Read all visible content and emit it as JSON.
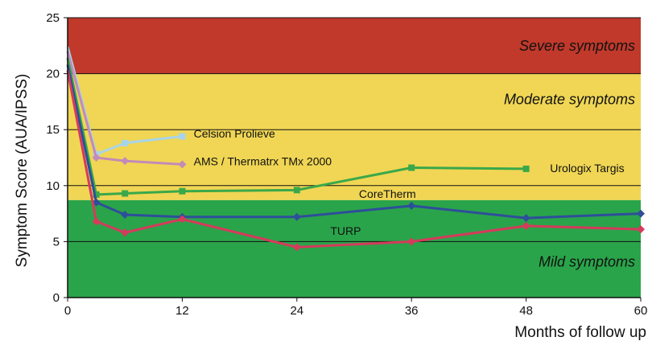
{
  "chart_data": {
    "type": "line",
    "ylabel": "Symptom Score (AUA/IPSS)",
    "xlabel": "Months of follow up",
    "xlim": [
      0,
      60
    ],
    "ylim": [
      0,
      25
    ],
    "xticks": [
      "0",
      "12",
      "24",
      "36",
      "48",
      "60"
    ],
    "yticks": [
      "0",
      "5",
      "10",
      "15",
      "20",
      "25"
    ],
    "grid": "horizontal",
    "zones": [
      {
        "label": "Severe symptoms",
        "from": 20,
        "to": 25,
        "color": "#c0392b"
      },
      {
        "label": "Moderate symptoms",
        "from": 8.7,
        "to": 20,
        "color": "#f0d654"
      },
      {
        "label": "Mild symptoms",
        "from": 0,
        "to": 8.7,
        "color": "#2aa44a"
      }
    ],
    "series": [
      {
        "name": "Celsion Prolieve",
        "color": "#a8d4ea",
        "marker": "square",
        "x": [
          0,
          3,
          6,
          12
        ],
        "y": [
          22.4,
          12.8,
          13.8,
          14.4
        ]
      },
      {
        "name": "AMS / Thermatrx TMx 2000",
        "color": "#c48ab8",
        "marker": "diamond",
        "x": [
          0,
          3,
          6,
          12
        ],
        "y": [
          22.0,
          12.5,
          12.2,
          11.9
        ]
      },
      {
        "name": "Urologix Targis",
        "color": "#3aa84a",
        "marker": "square",
        "x": [
          0,
          3,
          6,
          12,
          24,
          36,
          48
        ],
        "y": [
          21.4,
          9.2,
          9.3,
          9.5,
          9.6,
          11.6,
          11.5
        ]
      },
      {
        "name": "CoreTherm",
        "color": "#2e4e9a",
        "marker": "diamond",
        "x": [
          0,
          3,
          6,
          12,
          24,
          36,
          48,
          60
        ],
        "y": [
          20.8,
          8.5,
          7.4,
          7.2,
          7.2,
          8.2,
          7.1,
          7.5
        ]
      },
      {
        "name": "TURP",
        "color": "#d63a5c",
        "marker": "diamond",
        "x": [
          0,
          3,
          6,
          12,
          24,
          36,
          48,
          60
        ],
        "y": [
          20.3,
          6.8,
          5.8,
          7.0,
          4.5,
          5.0,
          6.4,
          6.1
        ]
      }
    ]
  }
}
